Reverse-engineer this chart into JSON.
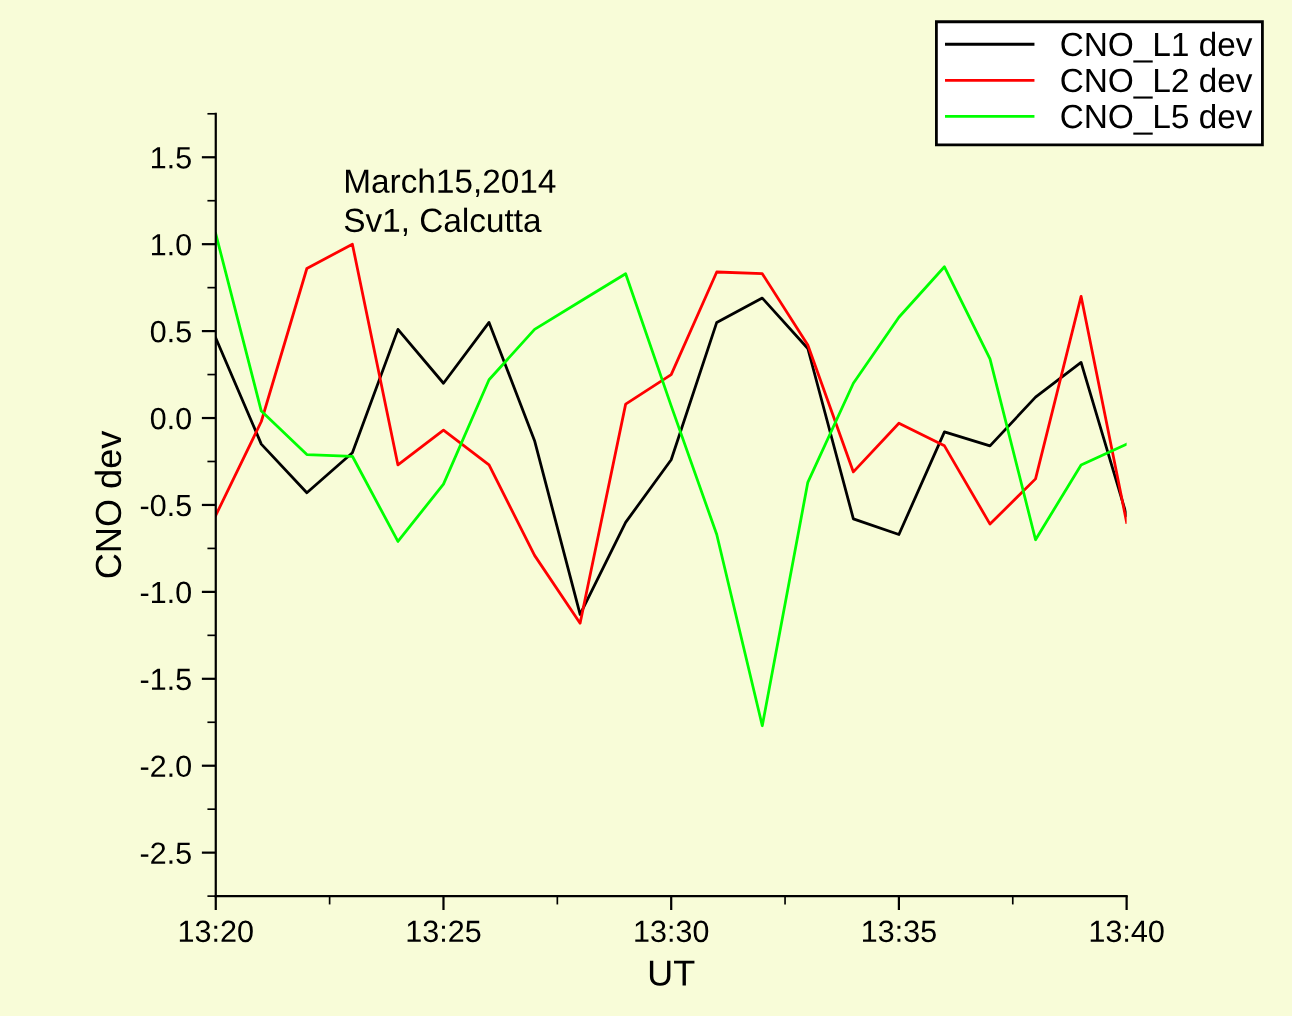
{
  "chart_data": {
    "type": "line",
    "x": [
      "2014-03-15T13:20",
      "2014-03-15T13:21",
      "2014-03-15T13:22",
      "2014-03-15T13:23",
      "2014-03-15T13:24",
      "2014-03-15T13:25",
      "2014-03-15T13:26",
      "2014-03-15T13:27",
      "2014-03-15T13:28",
      "2014-03-15T13:29",
      "2014-03-15T13:30",
      "2014-03-15T13:31",
      "2014-03-15T13:32",
      "2014-03-15T13:33",
      "2014-03-15T13:34",
      "2014-03-15T13:35",
      "2014-03-15T13:36",
      "2014-03-15T13:37",
      "2014-03-15T13:38",
      "2014-03-15T13:39",
      "2014-03-15T13:40"
    ],
    "series": [
      {
        "name": "CNO_L1 dev",
        "color": "#000000",
        "values": [
          0.46,
          -0.15,
          -0.43,
          -0.2,
          0.51,
          0.2,
          0.55,
          -0.13,
          -1.13,
          -0.6,
          -0.24,
          0.55,
          0.69,
          0.4,
          -0.58,
          -0.67,
          -0.08,
          -0.16,
          0.12,
          0.32,
          -0.56
        ]
      },
      {
        "name": "CNO_L2 dev",
        "color": "#ff0000",
        "values": [
          -0.56,
          -0.02,
          0.86,
          1.0,
          -0.27,
          -0.07,
          -0.27,
          -0.79,
          -1.18,
          0.08,
          0.25,
          0.84,
          0.83,
          0.42,
          -0.31,
          -0.03,
          -0.16,
          -0.61,
          -0.35,
          0.7,
          -0.6
        ]
      },
      {
        "name": "CNO_L5 dev",
        "color": "#00ff00",
        "values": [
          1.06,
          0.04,
          -0.21,
          -0.22,
          -0.71,
          -0.38,
          0.22,
          0.51,
          0.67,
          0.83,
          0.07,
          -0.67,
          -1.77,
          -0.37,
          0.2,
          0.58,
          0.87,
          0.34,
          -0.7,
          -0.27,
          -0.15
        ]
      }
    ],
    "xlabel": "UT",
    "ylabel": "CNO dev",
    "annotations": [
      "March15,2014",
      "Sv1, Calcutta"
    ],
    "xlim": [
      "2014-03-15T13:20",
      "2014-03-15T13:40"
    ],
    "xticks": [
      {
        "value": "2014-03-15T13:20",
        "label": "13:20"
      },
      {
        "value": "2014-03-15T13:25",
        "label": "13:25"
      },
      {
        "value": "2014-03-15T13:30",
        "label": "13:30"
      },
      {
        "value": "2014-03-15T13:35",
        "label": "13:35"
      },
      {
        "value": "2014-03-15T13:40",
        "label": "13:40"
      }
    ],
    "ylim": [
      -2.75,
      1.75
    ],
    "yticks": [
      {
        "value": -2.5,
        "label": "-2.5"
      },
      {
        "value": -2.0,
        "label": "-2.0"
      },
      {
        "value": -1.5,
        "label": "-1.5"
      },
      {
        "value": -1.0,
        "label": "-1.0"
      },
      {
        "value": -0.5,
        "label": "-0.5"
      },
      {
        "value": 0.0,
        "label": "0.0"
      },
      {
        "value": 0.5,
        "label": "0.5"
      },
      {
        "value": 1.0,
        "label": "1.0"
      },
      {
        "value": 1.5,
        "label": "1.5"
      }
    ],
    "grid": false,
    "legend": "top right",
    "marker": "none",
    "line_style": "solid"
  }
}
